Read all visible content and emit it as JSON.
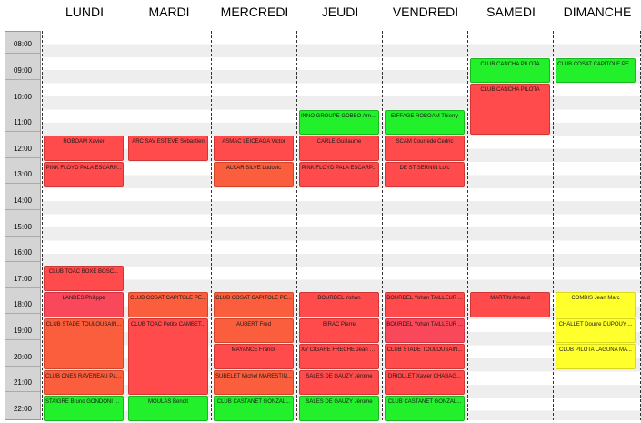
{
  "days": [
    "LUNDI",
    "MARDI",
    "MERCREDI",
    "JEUDI",
    "VENDREDI",
    "SAMEDI",
    "DIMANCHE"
  ],
  "times": [
    "08:00",
    "09:00",
    "10:00",
    "11:00",
    "12:00",
    "13:00",
    "14:00",
    "15:00",
    "16:00",
    "17:00",
    "18:00",
    "19:00",
    "20:00",
    "21:00",
    "22:00"
  ],
  "events": [
    {
      "day": 0,
      "start": 11.5,
      "end": 12.5,
      "label": "ROBOAM Xavier",
      "color": "red"
    },
    {
      "day": 0,
      "start": 12.5,
      "end": 13.5,
      "label": "PINK FLOYD PALA ESCARP...",
      "color": "red"
    },
    {
      "day": 0,
      "start": 16.5,
      "end": 17.5,
      "label": "CLUB TOAC BOXE BOSC...",
      "color": "red"
    },
    {
      "day": 0,
      "start": 17.5,
      "end": 18.5,
      "label": "LANDES Philippe",
      "color": "pink"
    },
    {
      "day": 0,
      "start": 18.5,
      "end": 20.5,
      "label": "CLUB STADE TOULOUSAIN...",
      "color": "orange"
    },
    {
      "day": 0,
      "start": 20.5,
      "end": 21.5,
      "label": "CLUB CNES RAVENEAU Pat...",
      "color": "orange"
    },
    {
      "day": 0,
      "start": 21.5,
      "end": 22.5,
      "label": "STAIGRE Bruno GONDONI N...",
      "color": "green"
    },
    {
      "day": 1,
      "start": 11.5,
      "end": 12.5,
      "label": "ARC SAV ESTEVE Sébastien",
      "color": "red"
    },
    {
      "day": 1,
      "start": 17.5,
      "end": 18.5,
      "label": "CLUB COSAT CAPITOLE PE...",
      "color": "orange"
    },
    {
      "day": 1,
      "start": 18.5,
      "end": 21.5,
      "label": "CLUB TOAC Petite CAMBET...",
      "color": "red"
    },
    {
      "day": 1,
      "start": 21.5,
      "end": 22.5,
      "label": "MOULAS Benoit",
      "color": "green"
    },
    {
      "day": 2,
      "start": 11.5,
      "end": 12.5,
      "label": "ASMAC LEICEAGA Victor",
      "color": "red"
    },
    {
      "day": 2,
      "start": 12.5,
      "end": 13.5,
      "label": "ALKAR SILVE Ludovic",
      "color": "orange"
    },
    {
      "day": 2,
      "start": 17.5,
      "end": 18.5,
      "label": "CLUB COSAT CAPITOLE PE...",
      "color": "orange"
    },
    {
      "day": 2,
      "start": 18.5,
      "end": 19.5,
      "label": "AUBERT Fred",
      "color": "orange"
    },
    {
      "day": 2,
      "start": 19.5,
      "end": 20.5,
      "label": "MAYANCE Franck",
      "color": "red"
    },
    {
      "day": 2,
      "start": 20.5,
      "end": 21.5,
      "label": "SUBELET Michel MARESTIN...",
      "color": "orange"
    },
    {
      "day": 2,
      "start": 21.5,
      "end": 22.5,
      "label": "CLUB CASTANET GONZAL...",
      "color": "green"
    },
    {
      "day": 3,
      "start": 10.5,
      "end": 11.5,
      "label": "INNO GROUPE GOBBO Arnaud",
      "color": "green"
    },
    {
      "day": 3,
      "start": 11.5,
      "end": 12.5,
      "label": "CARLE Guillaume",
      "color": "red"
    },
    {
      "day": 3,
      "start": 12.5,
      "end": 13.5,
      "label": "PINK FLOYD PALA ESCARP...",
      "color": "red"
    },
    {
      "day": 3,
      "start": 17.5,
      "end": 18.5,
      "label": "BOURDEL Yohan",
      "color": "red"
    },
    {
      "day": 3,
      "start": 18.5,
      "end": 19.5,
      "label": "BIRAC Pierre",
      "color": "red"
    },
    {
      "day": 3,
      "start": 19.5,
      "end": 20.5,
      "label": "XV CIGARE FRECHE Jean Fr...",
      "color": "red"
    },
    {
      "day": 3,
      "start": 20.5,
      "end": 21.5,
      "label": "SALES DE GAUZY Jérome",
      "color": "red"
    },
    {
      "day": 3,
      "start": 21.5,
      "end": 22.5,
      "label": "SALES DE GAUZY Jérome",
      "color": "green"
    },
    {
      "day": 4,
      "start": 10.5,
      "end": 11.5,
      "label": "EIFFAGE ROBOAM Thierry",
      "color": "green"
    },
    {
      "day": 4,
      "start": 11.5,
      "end": 12.5,
      "label": "SCAM Courrede Cedric",
      "color": "red"
    },
    {
      "day": 4,
      "start": 12.5,
      "end": 13.5,
      "label": "DE ST SERNIN Loïc",
      "color": "red"
    },
    {
      "day": 4,
      "start": 17.5,
      "end": 18.5,
      "label": "BOURDEL Yohan TAILLEUR ...",
      "color": "red"
    },
    {
      "day": 4,
      "start": 18.5,
      "end": 19.5,
      "label": "BOURDEL Yohan TAILLEUR ...",
      "color": "pink"
    },
    {
      "day": 4,
      "start": 19.5,
      "end": 20.5,
      "label": "CLUB STADE TOULOUSAIN...",
      "color": "red"
    },
    {
      "day": 4,
      "start": 20.5,
      "end": 21.5,
      "label": "DRIOLLET Xavier CHABAG...",
      "color": "red"
    },
    {
      "day": 4,
      "start": 21.5,
      "end": 22.5,
      "label": "CLUB CASTANET GONZAL...",
      "color": "green"
    },
    {
      "day": 5,
      "start": 8.5,
      "end": 9.5,
      "label": "CLUB CANCHA PILOTA",
      "color": "green"
    },
    {
      "day": 5,
      "start": 9.5,
      "end": 11.5,
      "label": "CLUB CANCHA PILOTA",
      "color": "red"
    },
    {
      "day": 5,
      "start": 17.5,
      "end": 18.5,
      "label": "MARTIN Arnaud",
      "color": "red"
    },
    {
      "day": 6,
      "start": 8.5,
      "end": 9.5,
      "label": "CLUB COSAT CAPITOLE PE...",
      "color": "green"
    },
    {
      "day": 6,
      "start": 17.5,
      "end": 18.5,
      "label": "COMBIS Jean Marc",
      "color": "yellow"
    },
    {
      "day": 6,
      "start": 18.5,
      "end": 19.5,
      "label": "CHALLET Dourre DUPOUY ...",
      "color": "yellow"
    },
    {
      "day": 6,
      "start": 19.5,
      "end": 20.5,
      "label": "CLUB PILOTA LAGUNA MA...",
      "color": "yellow"
    }
  ]
}
